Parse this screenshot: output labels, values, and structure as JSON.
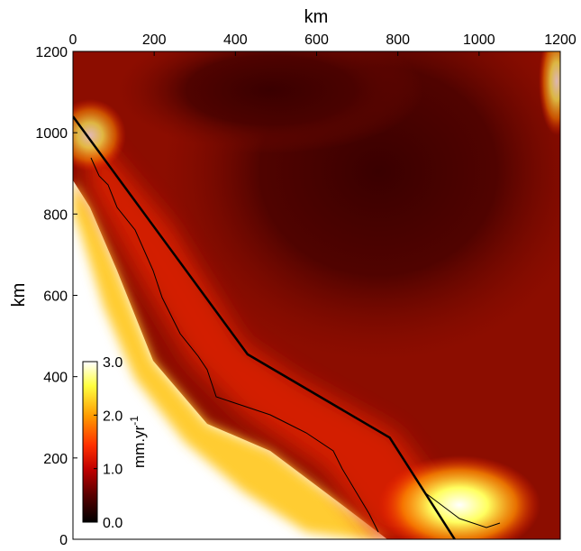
{
  "chart_data": {
    "type": "heatmap",
    "title": "",
    "xlabel": "km",
    "ylabel": "km",
    "x_axis_position": "top",
    "xlim": [
      0,
      1200
    ],
    "ylim": [
      0,
      1200
    ],
    "x_ticks": [
      0,
      200,
      400,
      600,
      800,
      1000,
      1200
    ],
    "y_ticks": [
      0,
      200,
      400,
      600,
      800,
      1000,
      1200
    ],
    "colorbar": {
      "label": "mm.yr",
      "label_superscript": "-1",
      "range": [
        0.0,
        3.0
      ],
      "ticks": [
        0.0,
        1.0,
        2.0,
        3.0
      ],
      "tick_labels": [
        "0.0",
        "1.0",
        "2.0",
        "3.0"
      ],
      "placement": "bottom-left inside",
      "colormap": [
        "#000000",
        "#5a0000",
        "#c00000",
        "#ff3000",
        "#ff9a00",
        "#ffff40",
        "#ffffff"
      ]
    },
    "fault_trace": {
      "x": [
        0,
        430,
        780,
        940
      ],
      "y": [
        1040,
        455,
        250,
        0
      ]
    },
    "colors": {
      "background_field": "#7a0a00",
      "low_field": "#3a0000",
      "high_field": "#ffff60",
      "trace": "#000000"
    },
    "grid": false
  }
}
